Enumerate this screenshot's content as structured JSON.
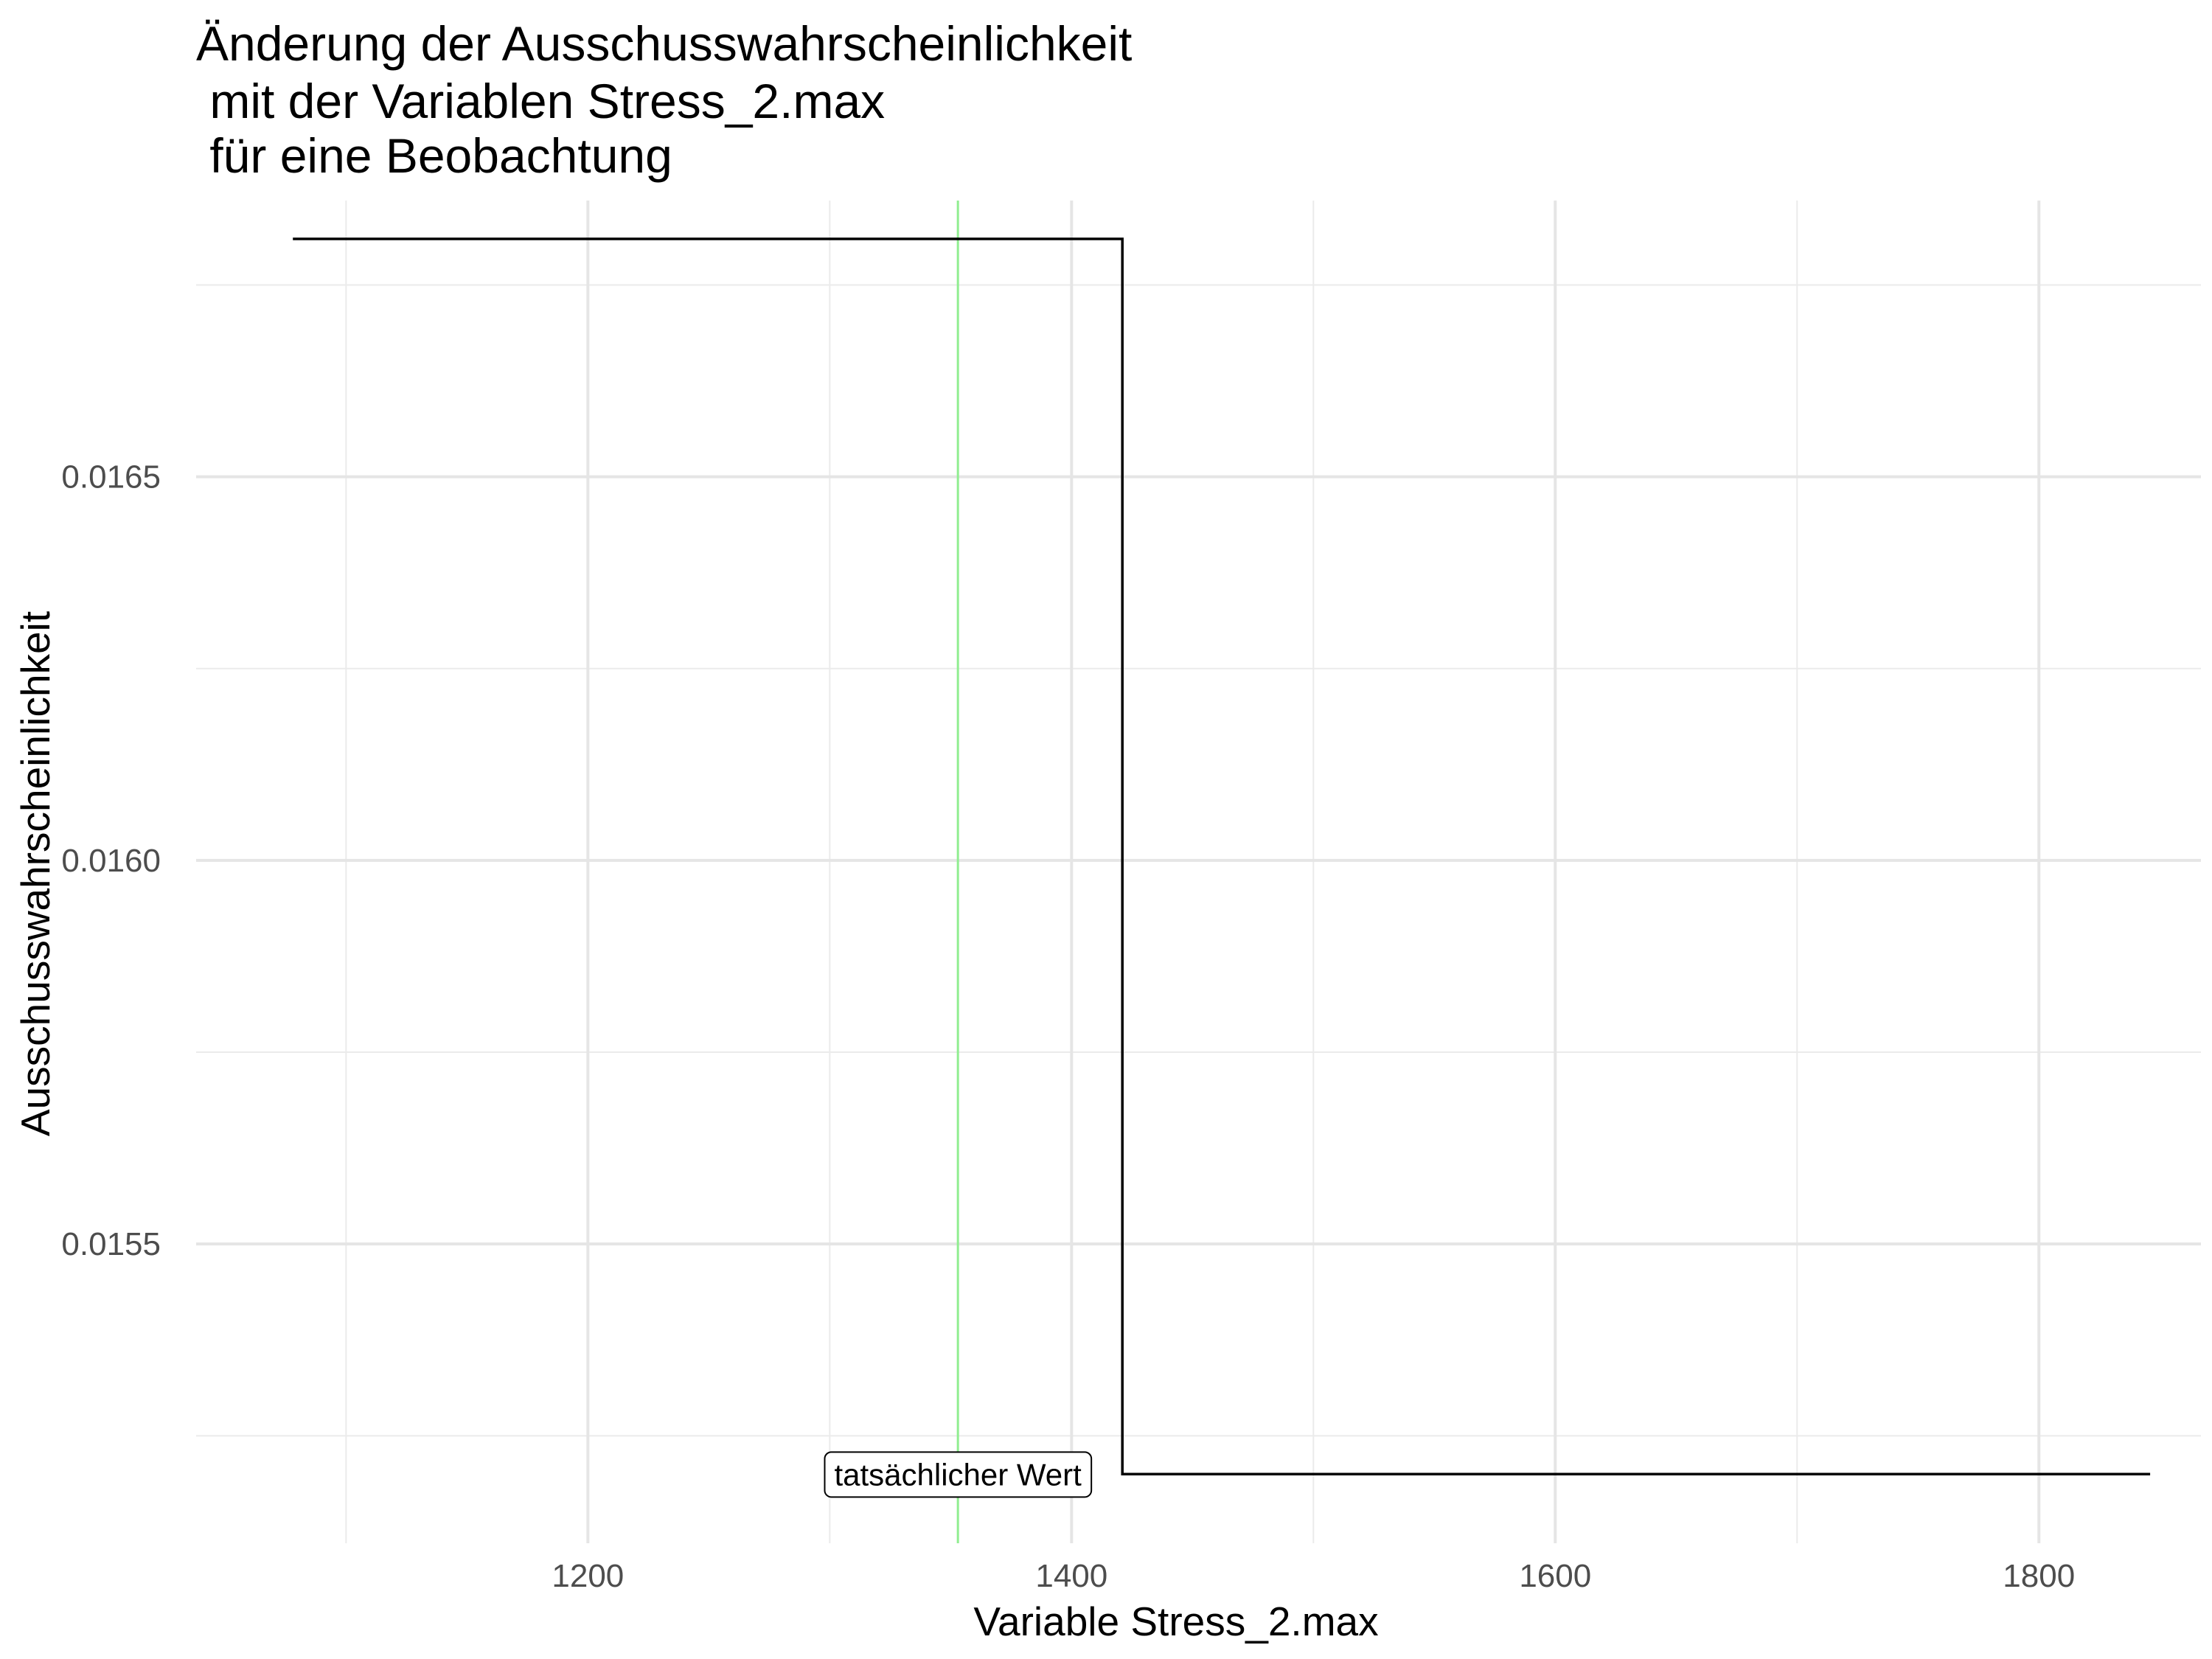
{
  "chart_data": {
    "type": "line",
    "title_lines": [
      "Änderung der Ausschusswahrscheinlichkeit",
      " mit der Variablen Stress_2.max",
      " für eine Beobachtung"
    ],
    "xlabel": "Variable Stress_2.max",
    "ylabel": "Ausschusswahrscheinlichkeit",
    "xlim": [
      1038,
      1867
    ],
    "ylim": [
      0.01511,
      0.01686
    ],
    "x_ticks": [
      1200,
      1400,
      1600,
      1800
    ],
    "x_tick_labels": [
      "1200",
      "1400",
      "1600",
      "1800"
    ],
    "x_minor_ticks": [
      1100,
      1300,
      1500,
      1700
    ],
    "y_ticks": [
      0.0155,
      0.016,
      0.0165
    ],
    "y_tick_labels": [
      "0.0155",
      "0.0160",
      "0.0165"
    ],
    "y_minor_ticks": [
      0.01525,
      0.01575,
      0.01625,
      0.01675
    ],
    "grid": true,
    "series": [
      {
        "type": "step",
        "color": "#000000",
        "points": [
          {
            "x": 1078,
            "y": 0.01681
          },
          {
            "x": 1421,
            "y": 0.01681
          },
          {
            "x": 1421,
            "y": 0.0152
          },
          {
            "x": 1846,
            "y": 0.0152
          }
        ]
      }
    ],
    "vline": {
      "x": 1353,
      "color": "#90ee90"
    },
    "annotation": {
      "text": "tatsächlicher Wert",
      "x": 1353,
      "y": 0.0152
    }
  }
}
